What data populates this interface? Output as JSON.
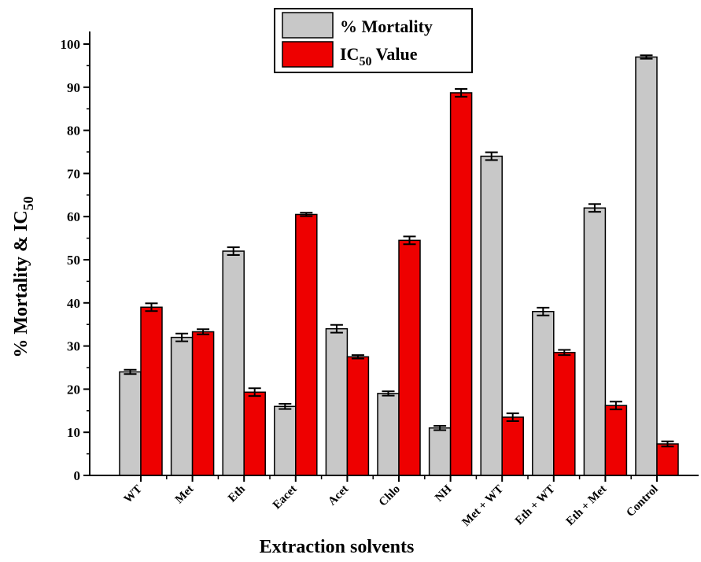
{
  "chart_data": {
    "type": "bar",
    "title": "",
    "xlabel": "Extraction solvents",
    "ylabel": {
      "main": "% Mortality & IC",
      "subscript": "50"
    },
    "ylim": [
      0,
      100
    ],
    "yticks": [
      0,
      10,
      20,
      30,
      40,
      50,
      60,
      70,
      80,
      90,
      100
    ],
    "grid": false,
    "legend_position": "top-center",
    "categories": [
      "WT",
      "Met",
      "Eth",
      "Eacet",
      "Acet",
      "Chlo",
      "NH",
      "Met + WT",
      "Eth + WT",
      "Eth + Met",
      "Control"
    ],
    "series": [
      {
        "name": "% Mortality",
        "legend_label": "% Mortality",
        "color": "#c8c8c8",
        "values": [
          24,
          32,
          52,
          16,
          34,
          19,
          11,
          74,
          38,
          62,
          97
        ],
        "errors": [
          0.5,
          0.9,
          0.9,
          0.6,
          0.9,
          0.5,
          0.5,
          0.9,
          0.9,
          0.9,
          0.4
        ]
      },
      {
        "name": "IC50 Value",
        "legend_label": {
          "prefix": "IC",
          "subscript": "50",
          "suffix": " Value"
        },
        "color": "#ee0000",
        "values": [
          39,
          33.3,
          19.3,
          60.5,
          27.5,
          54.5,
          88.7,
          13.5,
          28.5,
          16.2,
          7.3
        ],
        "errors": [
          0.9,
          0.6,
          0.9,
          0.4,
          0.4,
          0.9,
          0.9,
          0.9,
          0.6,
          0.9,
          0.6
        ]
      }
    ]
  }
}
